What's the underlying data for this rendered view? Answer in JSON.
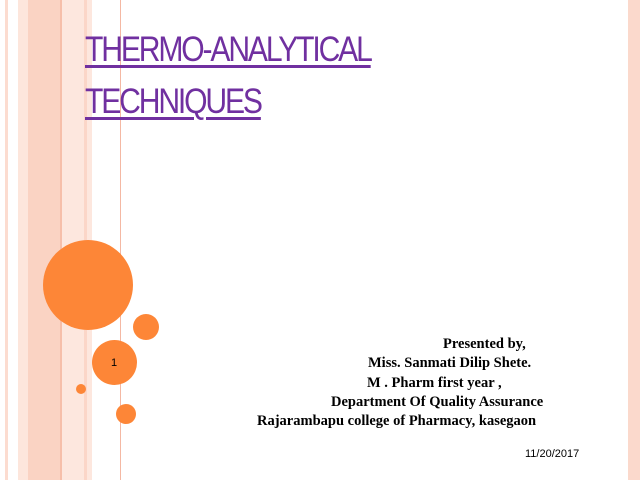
{
  "slide": {
    "title_lines": [
      "THERMO-ANALYTICAL",
      "TECHNIQUES"
    ],
    "presenter_lines": [
      "Presented by,",
      "Miss. Sanmati  Dilip Shete.",
      "M . Pharm first year ,",
      "Department Of Quality Assurance",
      "Rajarambapu  college of  Pharmacy, kasegaon"
    ],
    "date": "11/20/2017",
    "page_number": "1"
  },
  "colors": {
    "title": "#7030a0",
    "accent_circles": "#fd8637",
    "stripes": "#fbd9cc"
  }
}
